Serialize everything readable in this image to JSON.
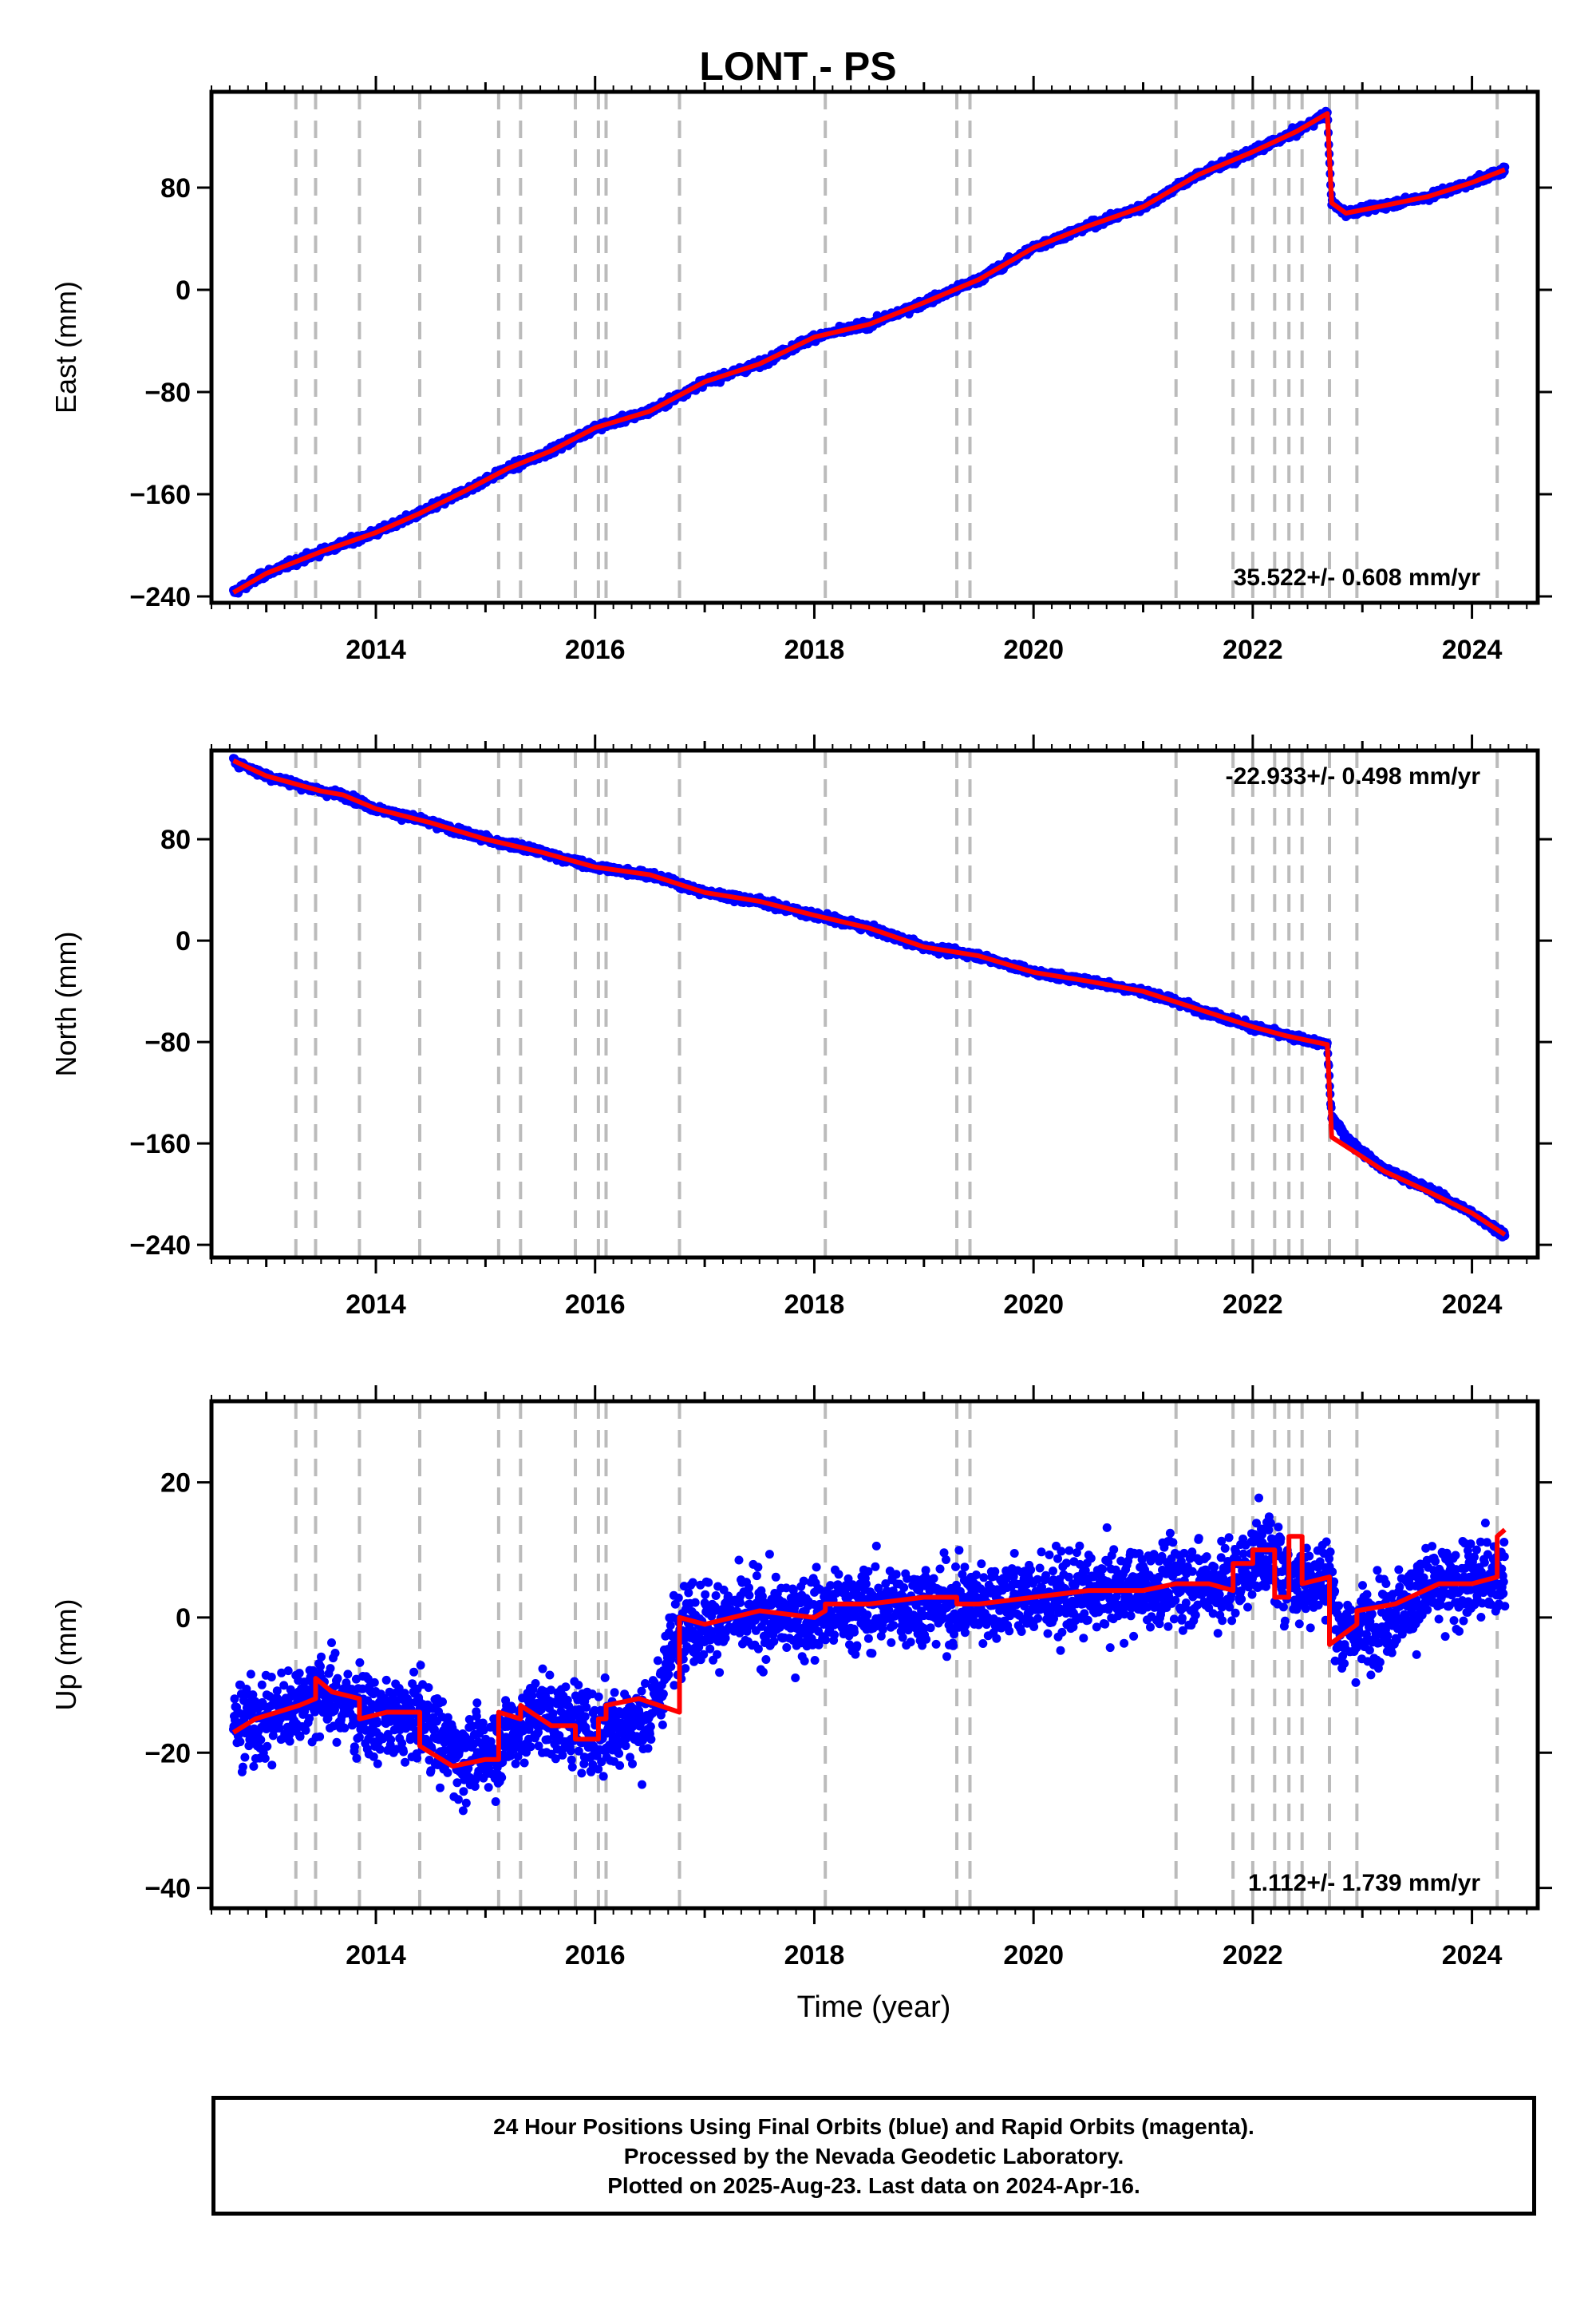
{
  "chart_data": [
    {
      "type": "scatter",
      "title": "LONT - PS",
      "ylabel": "East (mm)",
      "xlabel": "",
      "xlim": [
        2012.5,
        2024.6
      ],
      "ylim": [
        -245,
        155
      ],
      "yticks": [
        -240,
        -160,
        -80,
        0,
        80
      ],
      "ytick_labels": [
        "−240",
        "−160",
        "−80",
        "0",
        "80"
      ],
      "xticks": [
        2014,
        2016,
        2018,
        2020,
        2022,
        2024
      ],
      "xtick_labels": [
        "2014",
        "2016",
        "2018",
        "2020",
        "2022",
        "2024"
      ],
      "rate_label": "35.522+/- 0.608 mm/yr",
      "colors": {
        "points": "#0000ff",
        "model": "#ff0000",
        "events": "#bbbbbb"
      },
      "event_lines": [
        2013.27,
        2013.45,
        2013.85,
        2014.4,
        2015.12,
        2015.32,
        2015.82,
        2016.03,
        2016.1,
        2016.77,
        2018.1,
        2019.3,
        2019.42,
        2021.3,
        2021.82,
        2022.0,
        2022.2,
        2022.33,
        2022.45,
        2022.7,
        2022.95,
        2024.23
      ],
      "series": [
        {
          "role": "positions",
          "x": [
            2012.7,
            2013.0,
            2013.5,
            2014.0,
            2014.4,
            2014.8,
            2015.2,
            2015.6,
            2016.0,
            2016.5,
            2017.0,
            2017.5,
            2018.0,
            2018.5,
            2019.0,
            2019.5,
            2020.0,
            2020.5,
            2021.0,
            2021.5,
            2022.0,
            2022.4,
            2022.68,
            2022.72,
            2022.85,
            2023.2,
            2023.6,
            2024.0,
            2024.3
          ],
          "y": [
            -237,
            -222,
            -205,
            -190,
            -175,
            -158,
            -140,
            -126,
            -108,
            -95,
            -72,
            -58,
            -37,
            -27,
            -10,
            8,
            33,
            50,
            65,
            90,
            108,
            124,
            138,
            68,
            60,
            66,
            73,
            84,
            94
          ]
        },
        {
          "role": "model",
          "x": [
            2012.7,
            2013.0,
            2013.5,
            2014.0,
            2014.4,
            2014.8,
            2015.2,
            2015.6,
            2016.0,
            2016.5,
            2017.0,
            2017.5,
            2018.0,
            2018.5,
            2019.0,
            2019.5,
            2020.0,
            2020.5,
            2021.0,
            2021.5,
            2022.0,
            2022.4,
            2022.68,
            2022.72,
            2022.85,
            2023.2,
            2023.6,
            2024.0,
            2024.3
          ],
          "y": [
            -237,
            -222,
            -205,
            -190,
            -175,
            -158,
            -140,
            -126,
            -108,
            -95,
            -72,
            -58,
            -37,
            -27,
            -10,
            8,
            33,
            50,
            65,
            90,
            108,
            124,
            138,
            68,
            60,
            66,
            73,
            84,
            94
          ]
        }
      ]
    },
    {
      "type": "scatter",
      "title": "",
      "ylabel": "North (mm)",
      "xlabel": "",
      "xlim": [
        2012.5,
        2024.6
      ],
      "ylim": [
        -250,
        150
      ],
      "yticks": [
        -240,
        -160,
        -80,
        0,
        80
      ],
      "ytick_labels": [
        "−240",
        "−160",
        "−80",
        "0",
        "80"
      ],
      "xticks": [
        2014,
        2016,
        2018,
        2020,
        2022,
        2024
      ],
      "xtick_labels": [
        "2014",
        "2016",
        "2018",
        "2020",
        "2022",
        "2024"
      ],
      "rate_label": "-22.933+/- 0.498 mm/yr",
      "colors": {
        "points": "#0000ff",
        "model": "#ff0000",
        "events": "#bbbbbb"
      },
      "event_lines": [
        2013.27,
        2013.45,
        2013.85,
        2014.4,
        2015.12,
        2015.32,
        2015.82,
        2016.03,
        2016.1,
        2016.77,
        2018.1,
        2019.3,
        2019.42,
        2021.3,
        2021.82,
        2022.0,
        2022.2,
        2022.33,
        2022.45,
        2022.7,
        2022.95,
        2024.23
      ],
      "series": [
        {
          "role": "positions",
          "x": [
            2012.7,
            2013.0,
            2013.5,
            2013.7,
            2014.0,
            2014.5,
            2015.0,
            2015.5,
            2016.0,
            2016.5,
            2017.0,
            2017.5,
            2018.0,
            2018.5,
            2019.0,
            2019.5,
            2020.0,
            2020.5,
            2021.0,
            2021.5,
            2022.0,
            2022.3,
            2022.68,
            2022.72,
            2022.9,
            2023.2,
            2023.6,
            2024.0,
            2024.3
          ],
          "y": [
            142,
            130,
            118,
            115,
            104,
            93,
            80,
            70,
            58,
            52,
            38,
            31,
            20,
            10,
            -5,
            -12,
            -25,
            -32,
            -40,
            -54,
            -68,
            -75,
            -82,
            -140,
            -160,
            -180,
            -196,
            -215,
            -232
          ]
        },
        {
          "role": "model",
          "x": [
            2012.7,
            2013.0,
            2013.5,
            2013.7,
            2014.0,
            2014.5,
            2015.0,
            2015.5,
            2016.0,
            2016.5,
            2017.0,
            2017.5,
            2018.0,
            2018.5,
            2019.0,
            2019.5,
            2020.0,
            2020.5,
            2021.0,
            2021.5,
            2022.0,
            2022.3,
            2022.68,
            2022.72,
            2022.9,
            2023.2,
            2023.6,
            2024.0,
            2024.3
          ],
          "y": [
            142,
            130,
            118,
            115,
            104,
            93,
            80,
            70,
            58,
            52,
            38,
            31,
            20,
            10,
            -5,
            -12,
            -25,
            -32,
            -40,
            -54,
            -68,
            -75,
            -82,
            -155,
            -165,
            -182,
            -198,
            -215,
            -232
          ]
        }
      ]
    },
    {
      "type": "scatter",
      "title": "",
      "ylabel": "Up (mm)",
      "xlabel": "Time (year)",
      "xlim": [
        2012.5,
        2024.6
      ],
      "ylim": [
        -43,
        32
      ],
      "yticks": [
        -40,
        -20,
        0,
        20
      ],
      "ytick_labels": [
        "−40",
        "−20",
        "0",
        "20"
      ],
      "xticks": [
        2014,
        2016,
        2018,
        2020,
        2022,
        2024
      ],
      "xtick_labels": [
        "2014",
        "2016",
        "2018",
        "2020",
        "2022",
        "2024"
      ],
      "rate_label": "1.112+/- 1.739 mm/yr",
      "colors": {
        "points": "#0000ff",
        "model": "#ff0000",
        "events": "#bbbbbb"
      },
      "event_lines": [
        2013.27,
        2013.45,
        2013.85,
        2014.4,
        2015.12,
        2015.32,
        2015.82,
        2016.03,
        2016.1,
        2016.77,
        2018.1,
        2019.3,
        2019.42,
        2021.3,
        2021.82,
        2022.0,
        2022.2,
        2022.33,
        2022.45,
        2022.7,
        2022.95,
        2024.23
      ],
      "series": [
        {
          "role": "positions",
          "x": [
            2012.7,
            2013.0,
            2013.5,
            2014.0,
            2014.4,
            2014.8,
            2015.1,
            2015.5,
            2016.0,
            2016.5,
            2016.77,
            2017.2,
            2017.8,
            2018.3,
            2018.8,
            2019.3,
            2019.8,
            2020.3,
            2020.8,
            2021.3,
            2021.8,
            2022.1,
            2022.4,
            2022.7,
            2022.8,
            2023.2,
            2023.6,
            2024.0,
            2024.3
          ],
          "y": [
            -16,
            -15,
            -11,
            -15,
            -15,
            -21,
            -19,
            -14,
            -17,
            -15,
            -1,
            0,
            0,
            1,
            2,
            2,
            3,
            3,
            4,
            5,
            5,
            10,
            5,
            6,
            -3,
            0,
            4,
            5,
            7
          ]
        },
        {
          "role": "model",
          "x": [
            2012.7,
            2012.9,
            2013.1,
            2013.3,
            2013.45,
            2013.45,
            2013.6,
            2013.85,
            2013.85,
            2014.1,
            2014.4,
            2014.4,
            2014.7,
            2015.0,
            2015.12,
            2015.12,
            2015.32,
            2015.32,
            2015.6,
            2015.82,
            2015.82,
            2016.03,
            2016.03,
            2016.1,
            2016.1,
            2016.4,
            2016.77,
            2016.77,
            2017.0,
            2017.5,
            2018.0,
            2018.1,
            2018.1,
            2018.5,
            2019.0,
            2019.3,
            2019.3,
            2019.5,
            2020.0,
            2020.5,
            2021.0,
            2021.3,
            2021.3,
            2021.6,
            2021.82,
            2021.82,
            2022.0,
            2022.0,
            2022.2,
            2022.2,
            2022.33,
            2022.33,
            2022.45,
            2022.45,
            2022.7,
            2022.7,
            2022.95,
            2022.95,
            2023.3,
            2023.7,
            2024.0,
            2024.23,
            2024.23,
            2024.3
          ],
          "y": [
            -17,
            -15,
            -14,
            -13,
            -12,
            -9,
            -11,
            -12,
            -15,
            -14,
            -14,
            -19,
            -22,
            -21,
            -21,
            -14,
            -15,
            -13,
            -16,
            -16,
            -18,
            -18,
            -15,
            -15,
            -13,
            -12,
            -14,
            0,
            -1,
            1,
            0,
            1,
            2,
            2,
            3,
            3,
            2,
            2,
            3,
            4,
            4,
            5,
            5,
            5,
            4,
            8,
            8,
            10,
            10,
            3,
            3,
            12,
            12,
            5,
            6,
            -4,
            -1,
            1,
            2,
            5,
            5,
            6,
            12,
            13
          ]
        }
      ]
    }
  ],
  "footer": {
    "line1": "24 Hour Positions Using Final Orbits (blue) and Rapid Orbits (magenta).",
    "line2": "Processed by the Nevada Geodetic Laboratory.",
    "line3": "Plotted on 2025-Aug-23. Last data on 2024-Apr-16."
  }
}
